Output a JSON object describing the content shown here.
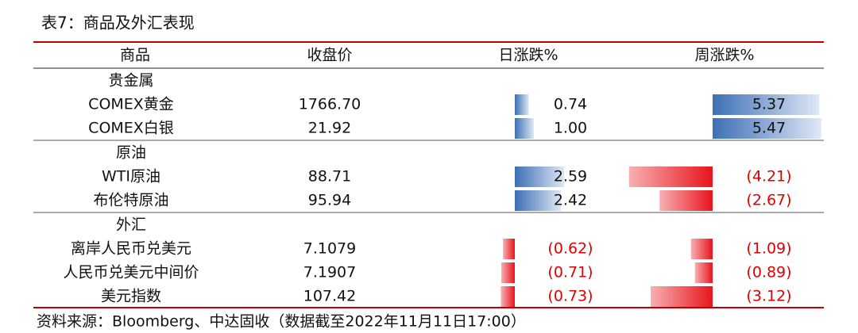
{
  "title": "表7：商品及外汇表现",
  "table": {
    "header": [
      "商品",
      "收盘价",
      "日涨跌%",
      "周涨跌%"
    ],
    "sections": [
      {
        "name": "贵金属",
        "rows": [
          {
            "name": "COMEX黄金",
            "close": "1766.70",
            "day": {
              "value": 0.74,
              "label": "0.74"
            },
            "week": {
              "value": 5.37,
              "label": "5.37"
            }
          },
          {
            "name": "COMEX白银",
            "close": "21.92",
            "day": {
              "value": 1.0,
              "label": "1.00"
            },
            "week": {
              "value": 5.47,
              "label": "5.47"
            }
          }
        ]
      },
      {
        "name": "原油",
        "rows": [
          {
            "name": "WTI原油",
            "close": "88.71",
            "day": {
              "value": 2.59,
              "label": "2.59"
            },
            "week": {
              "value": -4.21,
              "label": "(4.21)"
            }
          },
          {
            "name": "布伦特原油",
            "close": "95.94",
            "day": {
              "value": 2.42,
              "label": "2.42"
            },
            "week": {
              "value": -2.67,
              "label": "(2.67)"
            }
          }
        ]
      },
      {
        "name": "外汇",
        "rows": [
          {
            "name": "离岸人民币兑美元",
            "close": "7.1079",
            "day": {
              "value": -0.62,
              "label": "(0.62)"
            },
            "week": {
              "value": -1.09,
              "label": "(1.09)"
            }
          },
          {
            "name": "人民币兑美元中间价",
            "close": "7.1907",
            "day": {
              "value": -0.71,
              "label": "(0.71)"
            },
            "week": {
              "value": -0.89,
              "label": "(0.89)"
            }
          },
          {
            "name": "美元指数",
            "close": "107.42",
            "day": {
              "value": -0.73,
              "label": "(0.73)"
            },
            "week": {
              "value": -3.12,
              "label": "(3.12)"
            }
          }
        ]
      }
    ]
  },
  "source": "资料来源：Bloomberg、中达固收（数据截至2022年11月11日17:00）"
}
